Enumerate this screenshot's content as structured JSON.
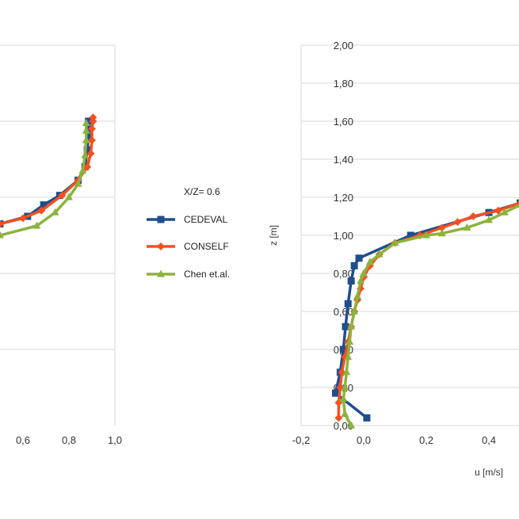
{
  "chart_data": [
    {
      "type": "line",
      "panel": "left",
      "xlim": [
        0.5,
        1.0
      ],
      "x_ticks": [
        "0,6",
        "0,8",
        "1,0"
      ],
      "grid": true,
      "series": [
        {
          "name": "CEDEVAL",
          "color": "#1f4e8c",
          "marker": "square",
          "x": [
            0.5,
            0.62,
            0.69,
            0.76,
            0.84,
            0.87,
            0.88,
            0.885,
            0.885,
            0.885
          ],
          "y": [
            1.06,
            1.1,
            1.16,
            1.21,
            1.29,
            1.36,
            1.45,
            1.52,
            1.56,
            1.6
          ]
        },
        {
          "name": "CONSELF",
          "color": "#f25022",
          "marker": "diamond",
          "x": [
            0.5,
            0.6,
            0.68,
            0.77,
            0.84,
            0.88,
            0.895,
            0.9,
            0.9,
            0.905,
            0.905
          ],
          "y": [
            1.06,
            1.09,
            1.13,
            1.21,
            1.29,
            1.36,
            1.43,
            1.5,
            1.56,
            1.6,
            1.62
          ]
        },
        {
          "name": "Chen et.al.",
          "color": "#8cb33d",
          "marker": "triangle",
          "x": [
            0.5,
            0.66,
            0.74,
            0.8,
            0.84,
            0.86,
            0.87,
            0.875,
            0.875,
            0.875
          ],
          "y": [
            1.0,
            1.05,
            1.12,
            1.2,
            1.27,
            1.34,
            1.42,
            1.5,
            1.55,
            1.59
          ]
        }
      ]
    },
    {
      "type": "line",
      "panel": "right",
      "xlabel": "u [m/s]",
      "ylabel": "z [m]",
      "xlim": [
        -0.2,
        0.5
      ],
      "ylim": [
        0.0,
        2.0
      ],
      "x_ticks": [
        "-0,2",
        "0,0",
        "0,2",
        "0,4"
      ],
      "y_ticks": [
        "0,00",
        "0,20",
        "0,40",
        "0,60",
        "0,80",
        "1,00",
        "1,20",
        "1,40",
        "1,60",
        "1,80",
        "2,00"
      ],
      "grid": true,
      "series": [
        {
          "name": "CEDEVAL",
          "color": "#1f4e8c",
          "marker": "square",
          "x": [
            0.01,
            -0.09,
            -0.075,
            -0.065,
            -0.058,
            -0.05,
            -0.04,
            -0.03,
            -0.015,
            0.15,
            0.4,
            0.5
          ],
          "y": [
            0.04,
            0.17,
            0.28,
            0.4,
            0.52,
            0.64,
            0.76,
            0.84,
            0.88,
            1.0,
            1.12,
            1.17
          ]
        },
        {
          "name": "CONSELF",
          "color": "#f25022",
          "marker": "diamond",
          "x": [
            -0.08,
            -0.08,
            -0.075,
            -0.07,
            -0.06,
            -0.05,
            -0.04,
            -0.03,
            -0.02,
            -0.01,
            0.0,
            0.02,
            0.05,
            0.1,
            0.18,
            0.25,
            0.3,
            0.35,
            0.43,
            0.5
          ],
          "y": [
            0.04,
            0.12,
            0.2,
            0.28,
            0.36,
            0.44,
            0.52,
            0.6,
            0.66,
            0.72,
            0.78,
            0.84,
            0.9,
            0.96,
            1.0,
            1.04,
            1.07,
            1.1,
            1.13,
            1.17
          ]
        },
        {
          "name": "Chen et.al.",
          "color": "#8cb33d",
          "marker": "triangle",
          "x": [
            -0.04,
            -0.06,
            -0.065,
            -0.06,
            -0.055,
            -0.05,
            -0.045,
            -0.04,
            -0.03,
            -0.02,
            -0.01,
            0.0,
            0.02,
            0.05,
            0.1,
            0.2,
            0.25,
            0.33,
            0.4,
            0.45,
            0.5
          ],
          "y": [
            0.0,
            0.06,
            0.14,
            0.2,
            0.28,
            0.36,
            0.44,
            0.52,
            0.6,
            0.68,
            0.76,
            0.8,
            0.86,
            0.9,
            0.96,
            1.0,
            1.01,
            1.04,
            1.08,
            1.12,
            1.16
          ]
        }
      ]
    }
  ],
  "legend": {
    "title": "X/Z= 0.6",
    "items": [
      {
        "label": "CEDEVAL",
        "color": "#1f4e8c",
        "marker": "square"
      },
      {
        "label": "CONSELF",
        "color": "#f25022",
        "marker": "diamond"
      },
      {
        "label": "Chen et.al.",
        "color": "#8cb33d",
        "marker": "triangle"
      }
    ]
  }
}
